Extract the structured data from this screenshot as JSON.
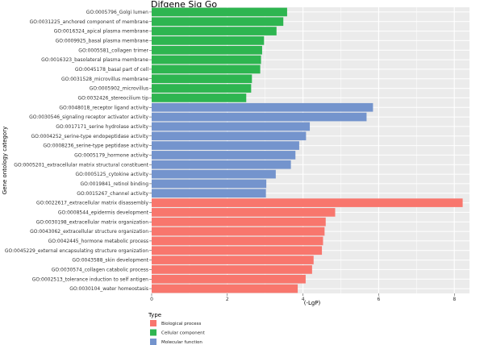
{
  "chart_data": {
    "type": "bar",
    "orientation": "horizontal",
    "title": "Difgene Sig Go",
    "xlabel": "(-LgP)",
    "ylabel": "Gene ontology category",
    "xlim": [
      0,
      8.4
    ],
    "xticks": [
      0,
      2,
      4,
      6,
      8
    ],
    "grid": true,
    "legend": {
      "title": "Type",
      "placement": "bottom-left"
    },
    "colors": {
      "Biological process": "#f8766d",
      "Cellular component": "#2eb550",
      "Molecular function": "#7494cd",
      "panel": "#ebebeb",
      "grid": "#ffffff"
    },
    "series": [
      {
        "name": "Cellular component",
        "categories": [
          "GO:0005796_Golgi lumen",
          "GO:0031225_anchored component of membrane",
          "GO:0016324_apical plasma membrane",
          "GO:0009925_basal plasma membrane",
          "GO:0005581_collagen trimer",
          "GO:0016323_basolateral plasma membrane",
          "GO:0045178_basal part of cell",
          "GO:0031528_microvillus membrane",
          "GO:0005902_microvillus",
          "GO:0032426_stereocilium tip"
        ],
        "values": [
          3.58,
          3.48,
          3.3,
          2.97,
          2.92,
          2.89,
          2.87,
          2.65,
          2.63,
          2.5
        ]
      },
      {
        "name": "Molecular function",
        "categories": [
          "GO:0048018_receptor ligand activity",
          "GO:0030546_signaling receptor activator activity",
          "GO:0017171_serine hydrolase activity",
          "GO:0004252_serine-type endopeptidase activity",
          "GO:0008236_serine-type peptidase activity",
          "GO:0005179_hormone activity",
          "GO:0005201_extracellular matrix structural constituent",
          "GO:0005125_cytokine activity",
          "GO:0019841_retinol binding",
          "GO:0015267_channel activity"
        ],
        "values": [
          5.85,
          5.68,
          4.18,
          4.08,
          3.9,
          3.8,
          3.68,
          3.28,
          3.03,
          3.02
        ]
      },
      {
        "name": "Biological process",
        "categories": [
          "GO:0022617_extracellular matrix disassembly",
          "GO:0008544_epidermis development",
          "GO:0030198_extracellular matrix organization",
          "GO:0043062_extracellular structure organization",
          "GO:0042445_hormone metabolic process",
          "GO:0045229_external encapsulating structure organization",
          "GO:0043588_skin development",
          "GO:0030574_collagen catabolic process",
          "GO:0002513_tolerance induction to self antigen",
          "GO:0030104_water homeostasis"
        ],
        "values": [
          8.22,
          4.85,
          4.6,
          4.57,
          4.53,
          4.5,
          4.28,
          4.24,
          4.07,
          3.86
        ]
      }
    ],
    "legend_order": [
      "Biological process",
      "Cellular component",
      "Molecular function"
    ]
  }
}
